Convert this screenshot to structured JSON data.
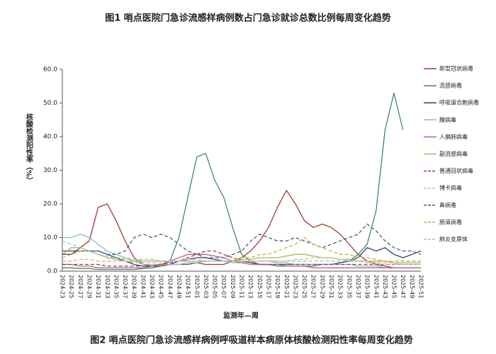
{
  "chart_data": {
    "type": "line",
    "title": "图1 哨点医院门急诊流感样病例数占门急诊就诊总数比例每周变化趋势",
    "caption": "图2 哨点医院门急诊流感样病例呼吸道样本病原体核酸检测阳性率每周变化趋势",
    "xlabel": "监测年—周",
    "ylabel": "核酸检测阳性率（%）",
    "categories": [
      "2024-23",
      "2024-25",
      "2024-27",
      "2024-29",
      "2024-31",
      "2024-33",
      "2024-35",
      "2024-37",
      "2024-39",
      "2024-41",
      "2024-43",
      "2024-45",
      "2024-47",
      "2024-49",
      "2024-51",
      "2025-01",
      "2025-03",
      "2025-05",
      "2025-07",
      "2025-09",
      "2025-11",
      "2025-13",
      "2025-15",
      "2025-17",
      "2025-19",
      "2025-21",
      "2025-23",
      "2025-25",
      "2025-27",
      "2025-29",
      "2025-31",
      "2025-33",
      "2025-35",
      "2025-37",
      "2025-39",
      "2025-41",
      "2025-43",
      "2025-45",
      "2025-47",
      "2025-49",
      "2025-51"
    ],
    "ylim": [
      0,
      60
    ],
    "yticks": [
      {
        "value": 0,
        "label": "0.0"
      },
      {
        "value": 10,
        "label": "10.0"
      },
      {
        "value": 20,
        "label": "20.0"
      },
      {
        "value": 30,
        "label": "30.0"
      },
      {
        "value": 40,
        "label": "40.0"
      },
      {
        "value": 50,
        "label": "50.0"
      },
      {
        "value": 60,
        "label": "60.0"
      }
    ],
    "series": [
      {
        "name": "新型冠状病毒",
        "color": "#a33a32",
        "dashed": false,
        "values": [
          5,
          5,
          7,
          9,
          19,
          20,
          15,
          9,
          4,
          2,
          1.5,
          1.5,
          2,
          2,
          2,
          2.5,
          2,
          2,
          2,
          3,
          4,
          6,
          9,
          13,
          19,
          24,
          20,
          15,
          13,
          14,
          13,
          11,
          8,
          5,
          3,
          2,
          1.5,
          1,
          1,
          1,
          1
        ]
      },
      {
        "name": "流感病毒",
        "color": "#3f8a68",
        "dashed": false,
        "values": [
          1,
          1,
          0.8,
          0.8,
          0.5,
          0.5,
          0.5,
          0.5,
          0.5,
          0.8,
          1,
          1.5,
          3,
          10,
          22,
          34,
          35,
          27,
          22,
          13,
          5,
          3,
          2,
          2,
          1.5,
          1.5,
          1.5,
          1.5,
          1.5,
          2,
          2,
          2.5,
          3,
          5,
          8,
          18,
          42,
          53,
          42,
          null,
          null
        ]
      },
      {
        "name": "呼吸道合胞病毒",
        "color": "#2f3f7f",
        "dashed": false,
        "values": [
          6,
          6,
          6,
          6,
          6,
          5,
          4,
          3,
          2,
          1.5,
          1.5,
          2,
          2,
          3,
          3.5,
          4,
          4,
          3.5,
          3,
          3,
          3,
          2.5,
          2,
          2,
          2,
          2,
          2,
          2,
          2,
          2,
          2,
          2.5,
          3,
          4,
          7,
          6,
          7,
          5,
          4,
          5,
          6
        ]
      },
      {
        "name": "腺病毒",
        "color": "#7cc3c3",
        "dashed": false,
        "values": [
          10,
          10,
          11,
          10,
          8,
          6,
          5,
          4,
          3,
          2,
          2,
          2,
          2,
          2,
          2.5,
          2.5,
          3,
          3,
          3,
          2.5,
          2.5,
          3,
          3,
          3,
          2.5,
          2.5,
          2,
          2,
          2,
          2,
          2,
          2,
          2,
          1.5,
          1.5,
          1.5,
          1,
          1,
          1,
          1,
          1
        ]
      },
      {
        "name": "人偏肺病毒",
        "color": "#c0608f",
        "dashed": false,
        "values": [
          2,
          2,
          1.5,
          1.5,
          1,
          1,
          1,
          1,
          1,
          1,
          1.5,
          2,
          3,
          4,
          5,
          5,
          5,
          4.5,
          4,
          3,
          2.5,
          2,
          2,
          2,
          2,
          1.5,
          1.5,
          1.5,
          1,
          1,
          1,
          1,
          1,
          1,
          1,
          1,
          1,
          1,
          1,
          1,
          1
        ]
      },
      {
        "name": "副流感病毒",
        "color": "#a8b860",
        "dashed": false,
        "values": [
          5,
          7,
          7,
          6,
          5,
          4,
          3.5,
          3,
          3,
          3,
          3,
          3,
          3,
          3,
          3,
          3,
          3,
          3,
          3,
          3,
          3.5,
          3.5,
          4,
          4,
          4,
          4.5,
          5,
          5,
          4.5,
          4,
          4,
          3.5,
          3.5,
          3,
          3,
          3,
          3,
          2.5,
          2.5,
          2.5,
          2.5
        ]
      },
      {
        "name": "普通冠状病毒",
        "color": "#a33a32",
        "dashed": true,
        "values": [
          2,
          2,
          2,
          2,
          2,
          1.5,
          1.5,
          1.5,
          1.5,
          1.5,
          1.5,
          2,
          2.5,
          3,
          4,
          5,
          6,
          6,
          5,
          4,
          3,
          2.5,
          2,
          2,
          2,
          2,
          2,
          2,
          2,
          2,
          2,
          2,
          2,
          2,
          2,
          2,
          2,
          2,
          2,
          2,
          2
        ]
      },
      {
        "name": "博卡病毒",
        "color": "#d4b888",
        "dashed": true,
        "values": [
          3,
          3,
          3.5,
          3.5,
          3,
          3,
          3,
          3,
          2.5,
          2.5,
          2.5,
          2.5,
          3,
          3,
          3.5,
          3.5,
          3,
          3,
          3,
          3,
          3,
          3,
          3,
          3,
          3,
          3,
          3.5,
          3.5,
          4,
          4,
          4,
          3.5,
          3,
          3,
          3,
          2.5,
          2.5,
          2.5,
          2,
          2,
          2
        ]
      },
      {
        "name": "鼻病毒",
        "color": "#4a5a7a",
        "dashed": true,
        "values": [
          5,
          5,
          6,
          6,
          6,
          5,
          5,
          6,
          10,
          11,
          10,
          11,
          10,
          8,
          6,
          5,
          4,
          4,
          4,
          5,
          6,
          9,
          11,
          10,
          9,
          9,
          10,
          9,
          8,
          7,
          8,
          9,
          10,
          11,
          14,
          12,
          9,
          7,
          6,
          6,
          5
        ]
      },
      {
        "name": "肠道病毒",
        "color": "#c8b040",
        "dashed": true,
        "values": [
          4,
          5,
          6,
          6,
          5,
          4,
          4,
          3.5,
          3.5,
          3.5,
          3.5,
          3,
          3,
          3,
          3,
          3,
          3,
          3,
          3,
          3,
          4,
          4,
          5,
          5,
          6,
          7,
          8,
          10,
          8,
          7,
          6,
          5,
          5,
          4,
          4,
          3.5,
          3,
          3,
          3,
          3,
          3
        ]
      },
      {
        "name": "肺炎支原体",
        "color": "#9ac0d0",
        "dashed": true,
        "values": [
          9,
          8,
          7,
          6,
          5,
          4.5,
          4,
          4,
          3.5,
          3,
          3,
          3,
          3,
          3,
          3,
          3,
          3,
          3,
          3,
          3,
          3,
          3,
          3,
          3,
          3,
          3,
          3,
          3,
          3,
          3,
          3,
          3,
          3,
          3,
          2.5,
          2.5,
          2,
          2,
          2,
          2,
          2
        ]
      }
    ]
  }
}
